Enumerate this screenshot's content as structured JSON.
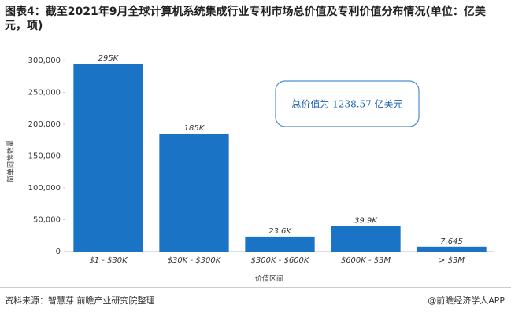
{
  "chart_data": {
    "type": "bar",
    "title": "图表4：截至2021年9月全球计算机系统集成行业专利市场总价值及专利价值分布情况(单位：亿美元，项)",
    "categories": [
      "$1 - $30K",
      "$30K - $300K",
      "$300K - $600K",
      "$600K - $3M",
      "> $3M"
    ],
    "values": [
      295000,
      185000,
      23600,
      39900,
      7645
    ],
    "value_labels": [
      "295K",
      "185K",
      "23.6K",
      "39.9K",
      "7,645"
    ],
    "color": "#1a73c4",
    "ylim": [
      0,
      300000
    ],
    "yticks": [
      0,
      {
        "value": 50000,
        "label": "50,000"
      },
      {
        "value": 100000,
        "label": "100,000"
      },
      {
        "value": 150000,
        "label": "150,000"
      },
      {
        "value": 200000,
        "label": "200,000"
      },
      {
        "value": 250000,
        "label": "250,000"
      },
      {
        "value": 300000,
        "label": "300,000"
      }
    ],
    "y_label": "简单同族数量",
    "x_label": "价值区间",
    "annotation": "总价值为 1238.57 亿美元",
    "grid": false
  },
  "footer": {
    "source": "资料来源：智慧芽 前瞻产业研究院整理",
    "brand": "@前瞻经济学人APP"
  }
}
